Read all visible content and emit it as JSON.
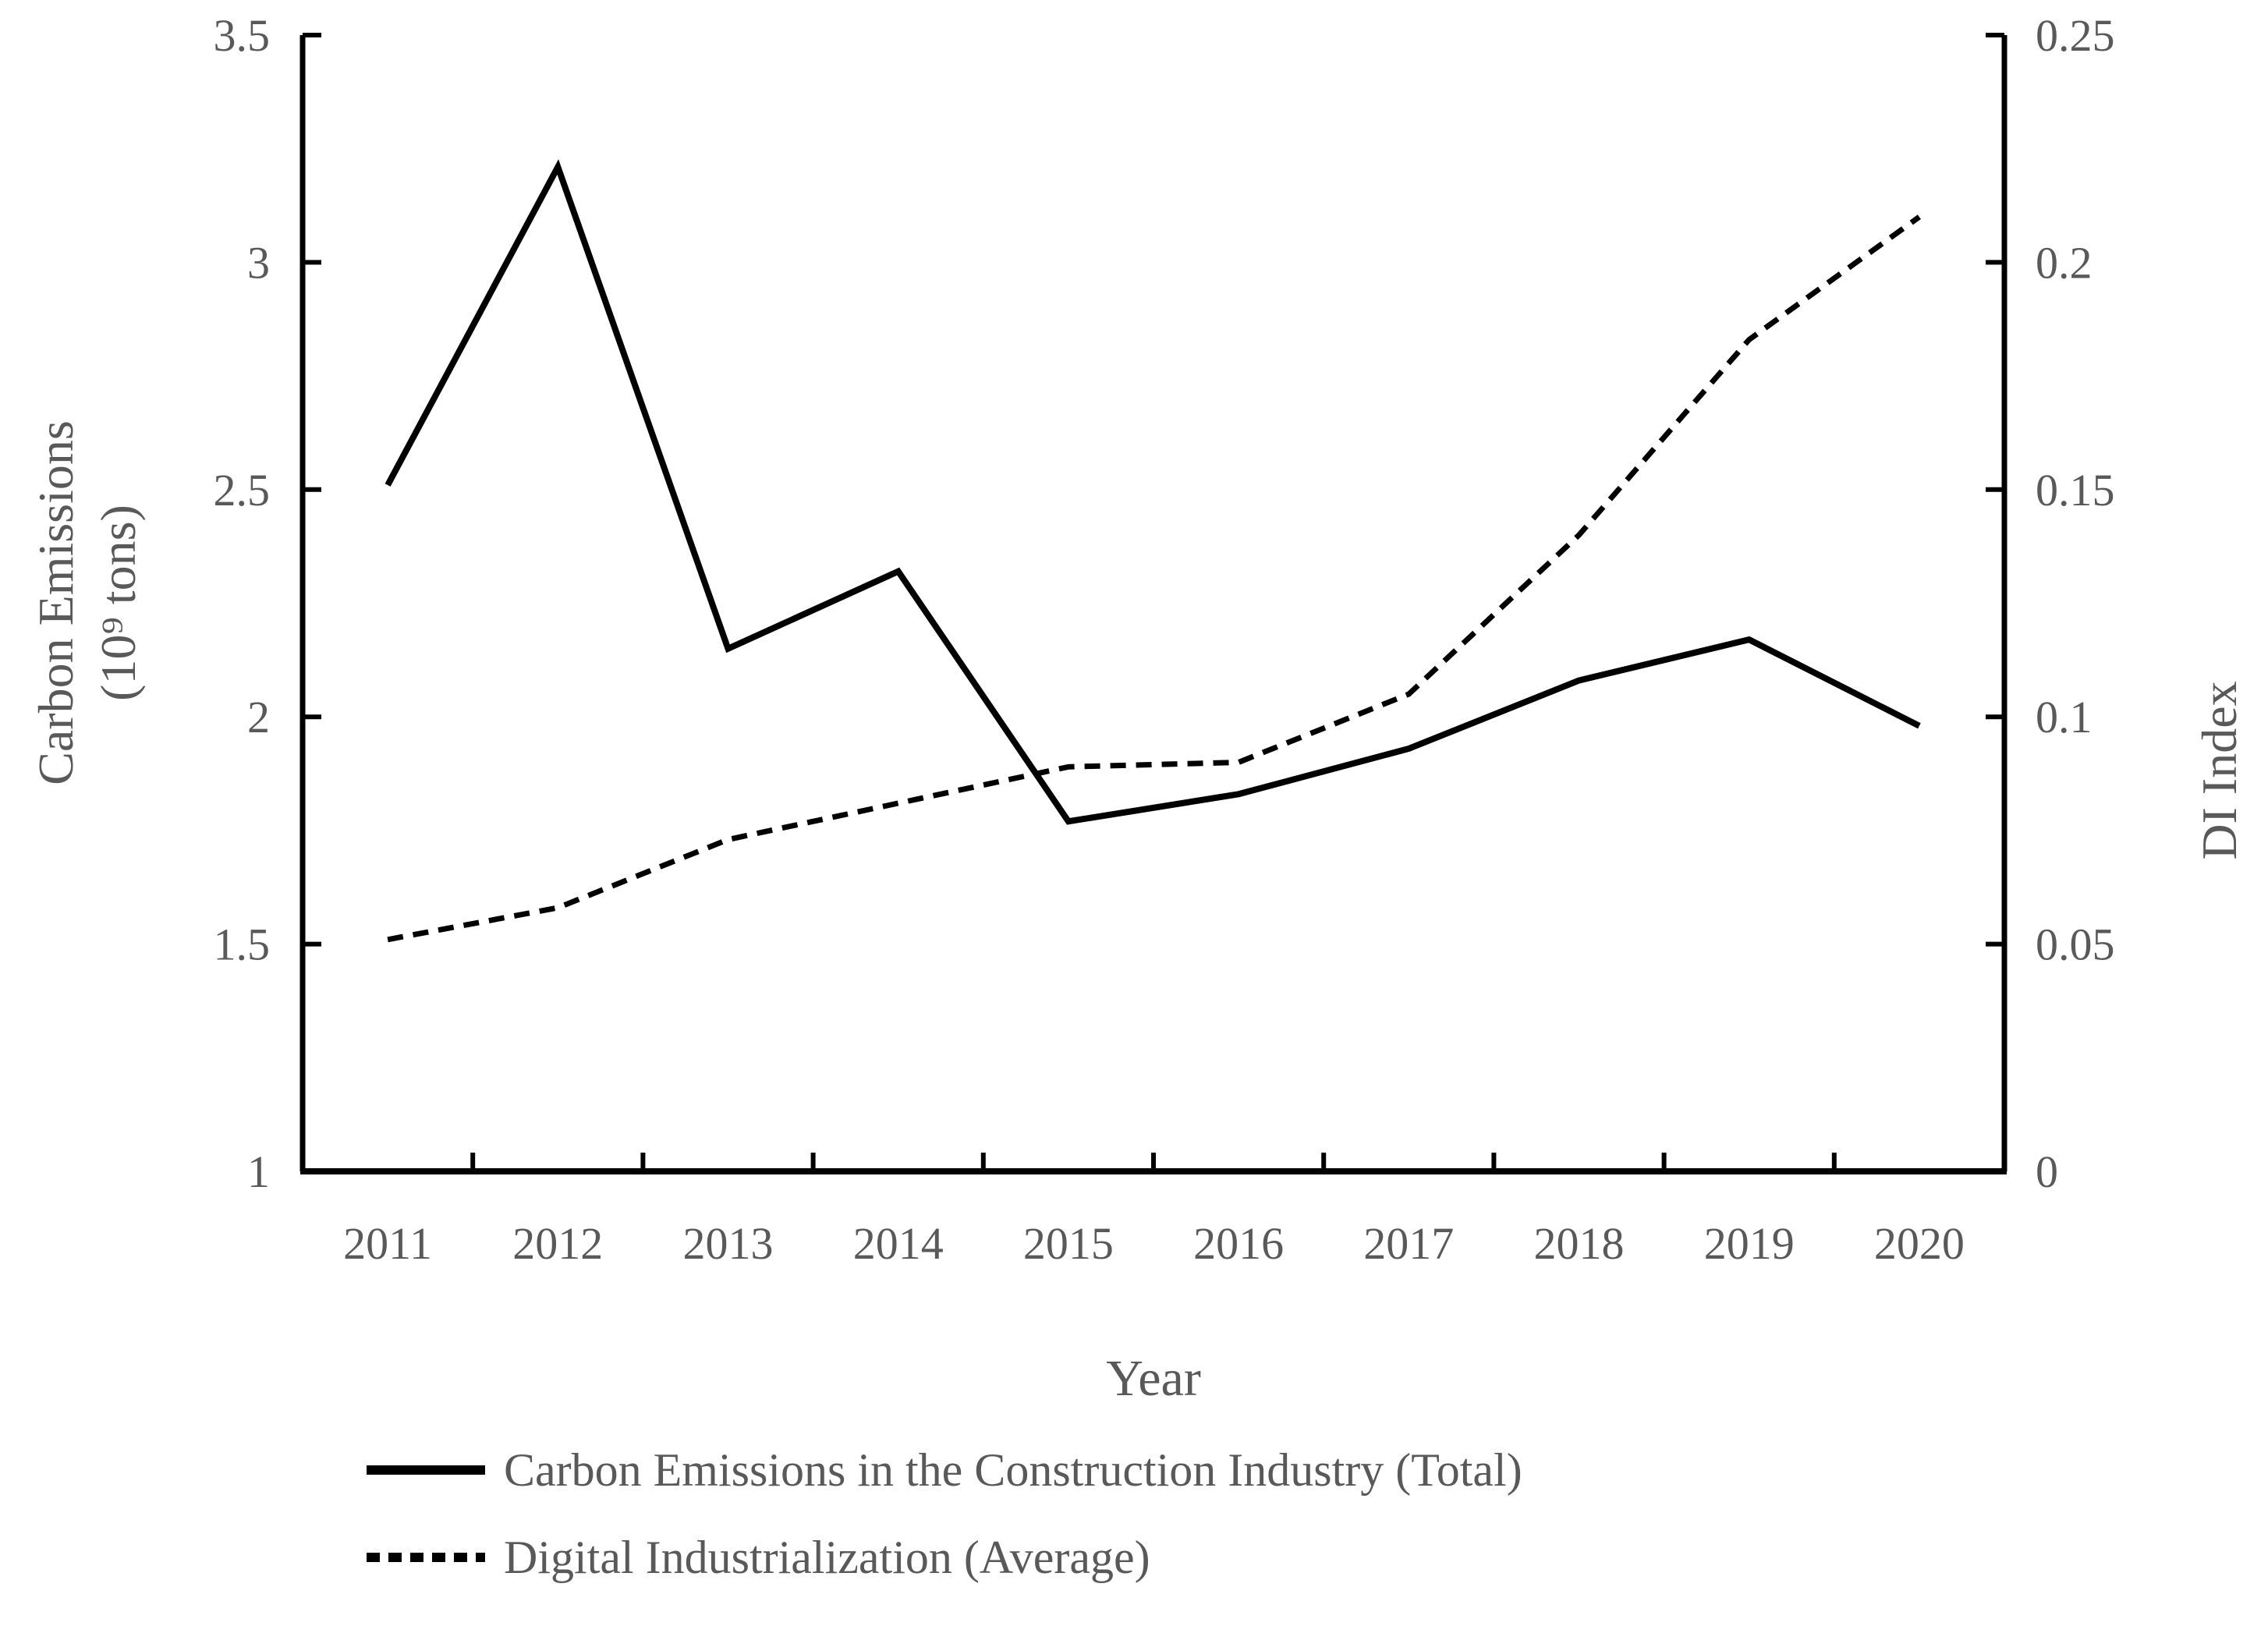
{
  "figure": {
    "background": "#ffffff",
    "text_color": "#595959",
    "line_color": "#000000"
  },
  "chart_data": {
    "type": "line",
    "title": "",
    "grid": false,
    "legend_position": "bottom-left",
    "x_axis": {
      "label": "Year",
      "categories": [
        "2011",
        "2012",
        "2013",
        "2014",
        "2015",
        "2016",
        "2017",
        "2018",
        "2019",
        "2020"
      ]
    },
    "left_axis": {
      "label_line1": "Carbon Emissions",
      "label_line2": "(10⁹ tons)",
      "min": 1,
      "max": 3.5,
      "tick_values": [
        3.5,
        3,
        2.5,
        2,
        1.5,
        1
      ],
      "tick_labels": [
        "3.5",
        "3",
        "2.5",
        "2",
        "1.5",
        "1"
      ]
    },
    "right_axis": {
      "label": "DI Index",
      "min": 0,
      "max": 0.25,
      "tick_values": [
        0.25,
        0.2,
        0.15,
        0.1,
        0.05,
        0
      ],
      "tick_labels": [
        "0.25",
        "0.2",
        "0.15",
        "0.1",
        "0.05",
        "0"
      ]
    },
    "series": [
      {
        "name": "Carbon Emissions in the Construction Industry (Total)",
        "axis": "left",
        "line_style": "solid",
        "values": [
          2.51,
          3.21,
          2.15,
          2.32,
          1.77,
          1.83,
          1.93,
          2.08,
          2.17,
          1.98
        ]
      },
      {
        "name": "Digital Industrialization (Average)",
        "axis": "right",
        "line_style": "dashed",
        "values": [
          0.051,
          0.058,
          0.073,
          0.081,
          0.089,
          0.09,
          0.105,
          0.14,
          0.183,
          0.21
        ]
      }
    ]
  }
}
